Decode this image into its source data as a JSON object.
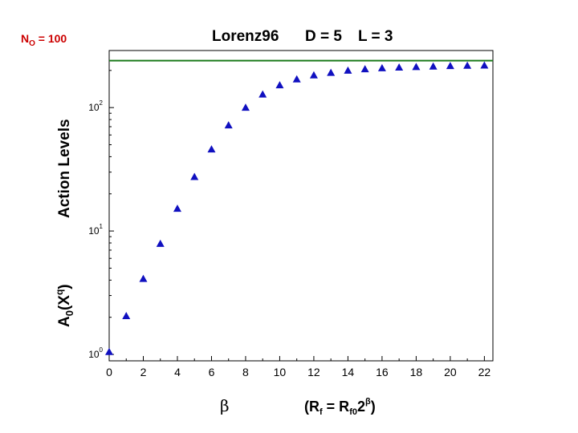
{
  "corner_note": {
    "base": "N",
    "sub": "O",
    "rest": " = 100",
    "color": "#cc0000"
  },
  "chart_data": {
    "type": "scatter",
    "title": {
      "model": "Lorenz96",
      "d": "D = 5",
      "l": "L = 3"
    },
    "ylabel": {
      "top": "Action Levels",
      "bottom_base": "A",
      "bottom_sub": "0",
      "bottom_paren_open": "(X",
      "bottom_sup": "q",
      "bottom_paren_close": ")"
    },
    "xlabel": {
      "beta": "β",
      "formula": "(R",
      "f_sub": "f",
      "eq": " = R",
      "f0_sub": "f0",
      "two": "2",
      "beta_sup": "β",
      "close": ")"
    },
    "x_ticks": [
      "0",
      "2",
      "4",
      "6",
      "8",
      "10",
      "12",
      "14",
      "16",
      "18",
      "20",
      "22"
    ],
    "y_ticks": [
      {
        "base": "10",
        "exp": "0"
      },
      {
        "base": "10",
        "exp": "1"
      },
      {
        "base": "10",
        "exp": "2"
      }
    ],
    "xlim": [
      0,
      22.5
    ],
    "y_scale": "log",
    "ylim": [
      1,
      290
    ],
    "reference_line": {
      "y": 240,
      "color": "#1a7a1a"
    },
    "marker_color": "#1010c0",
    "series": [
      {
        "x": [
          0,
          1,
          2,
          3,
          4,
          5,
          6,
          7,
          8,
          9,
          10,
          11,
          12,
          13,
          14,
          15,
          16,
          17,
          18,
          19,
          20,
          21,
          22
        ],
        "values": [
          1.05,
          2.05,
          4.1,
          7.9,
          15.2,
          27.5,
          46,
          72,
          100,
          128,
          152,
          170,
          183,
          192,
          200,
          205,
          209,
          212,
          214,
          216,
          218,
          219,
          220
        ]
      }
    ]
  }
}
